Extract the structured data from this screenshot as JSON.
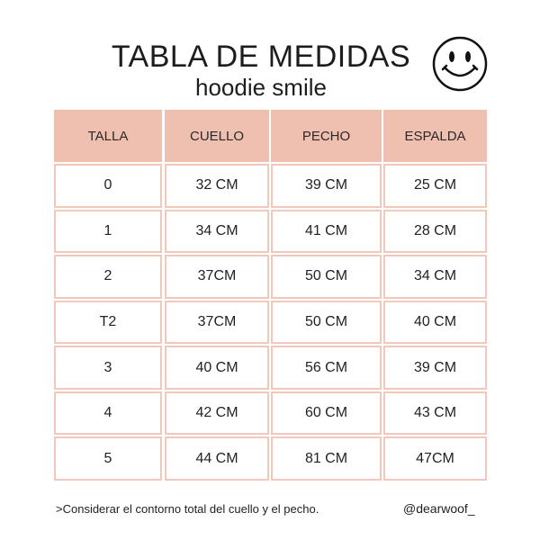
{
  "header": {
    "title": "TABLA DE MEDIDAS",
    "subtitle": "hoodie smile"
  },
  "table": {
    "columns": [
      "TALLA",
      "CUELLO",
      "PECHO",
      "ESPALDA"
    ],
    "rows": [
      [
        "0",
        "32 CM",
        "39 CM",
        "25 CM"
      ],
      [
        "1",
        "34 CM",
        "41 CM",
        "28 CM"
      ],
      [
        "2",
        "37CM",
        "50 CM",
        "34 CM"
      ],
      [
        "T2",
        "37CM",
        "50 CM",
        "40 CM"
      ],
      [
        "3",
        "40 CM",
        "56 CM",
        "39 CM"
      ],
      [
        "4",
        "42 CM",
        "60 CM",
        "43 CM"
      ],
      [
        "5",
        "44 CM",
        "81 CM",
        "47CM"
      ]
    ]
  },
  "footer": {
    "note": ">Considerar el contorno total del cuello y el pecho.",
    "handle": "@dearwoof_"
  }
}
